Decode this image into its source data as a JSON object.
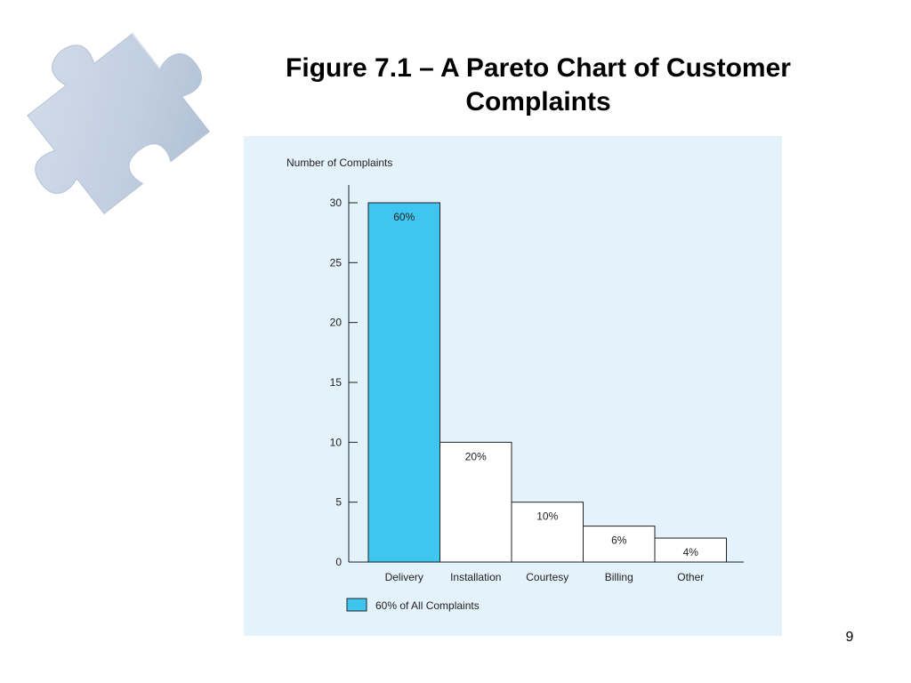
{
  "slide": {
    "title": "Figure 7.1 – A Pareto Chart of Customer Complaints",
    "page_number": "9"
  },
  "colors": {
    "chart_background": "#e3f2fb",
    "highlight_bar": "#3ec6f0",
    "plain_bar": "#ffffff",
    "axis": "#222222",
    "puzzle_piece": "#c5d2e4"
  },
  "decoration": {
    "icon": "puzzle-piece-icon"
  },
  "chart_data": {
    "type": "bar",
    "ylabel": "Number of Complaints",
    "xlabel": "",
    "ylim": [
      0,
      30
    ],
    "yticks": [
      0,
      5,
      10,
      15,
      20,
      25,
      30
    ],
    "categories": [
      "Delivery",
      "Installation",
      "Courtesy",
      "Billing",
      "Other"
    ],
    "values": [
      30,
      10,
      5,
      3,
      2
    ],
    "data_labels": [
      "60%",
      "20%",
      "10%",
      "6%",
      "4%"
    ],
    "highlighted": [
      true,
      false,
      false,
      false,
      false
    ],
    "legend": {
      "placement": "bottom-left",
      "entries": [
        {
          "label": "60% of All Complaints",
          "color": "#3ec6f0"
        }
      ]
    },
    "grid": false
  }
}
